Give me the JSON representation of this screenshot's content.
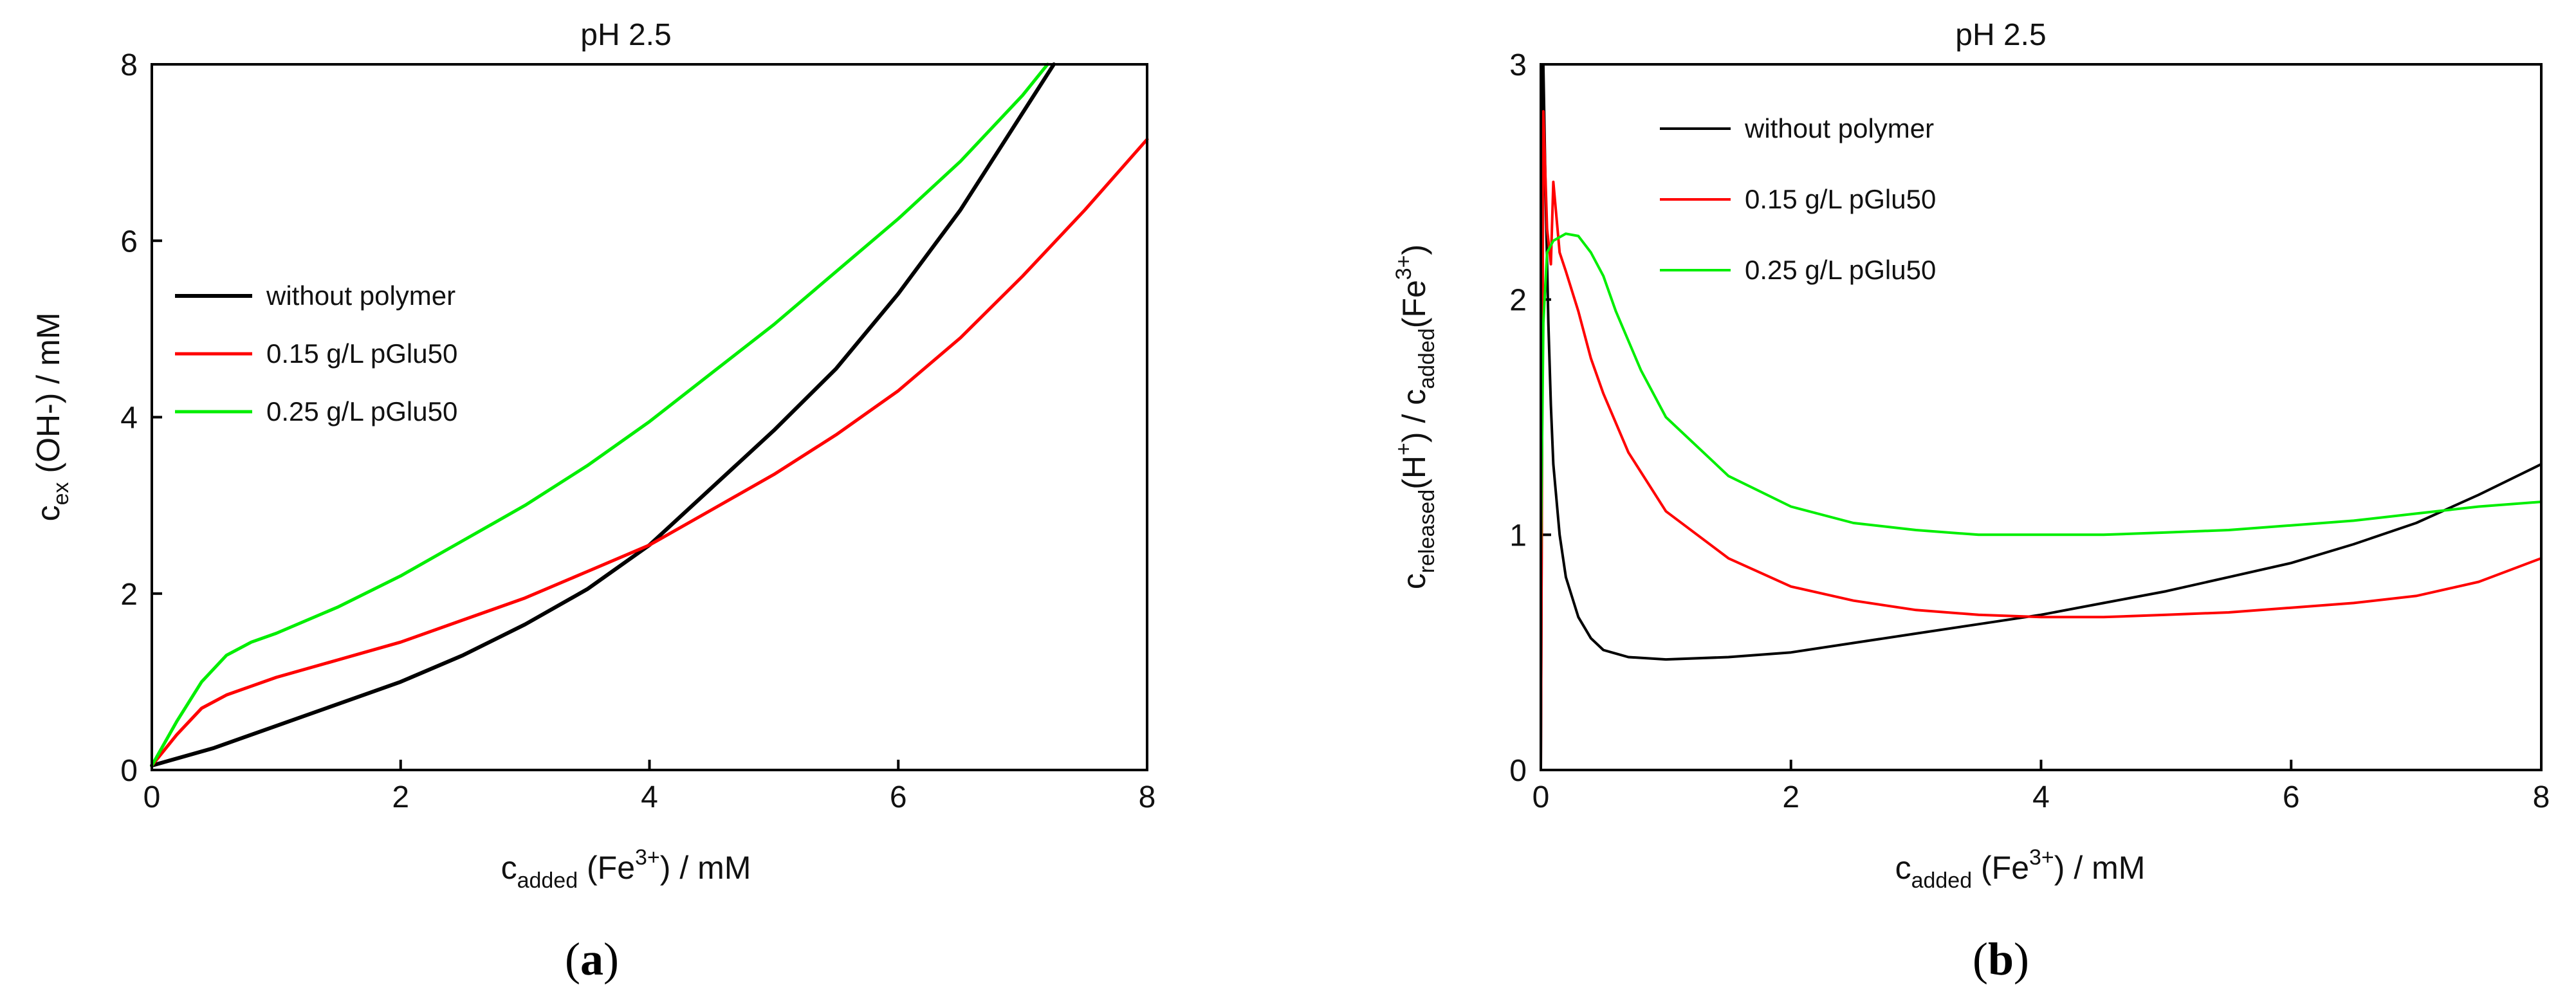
{
  "chart_data": [
    {
      "type": "line",
      "panel": "(a)",
      "panel_letter": "a",
      "title": "pH 2.5",
      "xlabel": {
        "main": "c",
        "sub": "added",
        "rest1": " (Fe",
        "sup": "3+",
        "rest2": ") / mM"
      },
      "ylabel": {
        "main": "c",
        "sub": "ex",
        "rest": " (OH-) / mM"
      },
      "xlim": [
        0,
        8
      ],
      "ylim": [
        0,
        8
      ],
      "xticks": [
        0,
        2,
        4,
        6,
        8
      ],
      "yticks": [
        0,
        2,
        4,
        6,
        8
      ],
      "legend_position": "middle-left",
      "series": [
        {
          "name": "without polymer",
          "color": "#000000",
          "width": 6,
          "x": [
            0,
            0.5,
            1,
            1.5,
            2,
            2.5,
            3,
            3.5,
            4,
            4.5,
            5,
            5.5,
            6,
            6.5,
            7,
            7.25
          ],
          "y": [
            0.05,
            0.25,
            0.5,
            0.75,
            1.0,
            1.3,
            1.65,
            2.05,
            2.55,
            3.2,
            3.85,
            4.55,
            5.4,
            6.35,
            7.45,
            8.0
          ]
        },
        {
          "name": "0.15 g/L pGlu50",
          "color": "#ff0000",
          "width": 5,
          "x": [
            0,
            0.2,
            0.4,
            0.6,
            0.8,
            1,
            1.5,
            2,
            2.5,
            3,
            3.5,
            4,
            4.5,
            5,
            5.5,
            6,
            6.5,
            7,
            7.5,
            8
          ],
          "y": [
            0.05,
            0.4,
            0.7,
            0.85,
            0.95,
            1.05,
            1.25,
            1.45,
            1.7,
            1.95,
            2.25,
            2.55,
            2.95,
            3.35,
            3.8,
            4.3,
            4.9,
            5.6,
            6.35,
            7.15
          ]
        },
        {
          "name": "0.25 g/L pGlu50",
          "color": "#00ee00",
          "width": 5,
          "x": [
            0,
            0.2,
            0.4,
            0.6,
            0.8,
            1,
            1.5,
            2,
            2.5,
            3,
            3.5,
            4,
            4.5,
            5,
            5.5,
            6,
            6.5,
            7,
            7.2
          ],
          "y": [
            0.05,
            0.55,
            1.0,
            1.3,
            1.45,
            1.55,
            1.85,
            2.2,
            2.6,
            3.0,
            3.45,
            3.95,
            4.5,
            5.05,
            5.65,
            6.25,
            6.9,
            7.65,
            8.0
          ]
        }
      ]
    },
    {
      "type": "line",
      "panel": "(b)",
      "panel_letter": "b",
      "title": "pH 2.5",
      "xlabel": {
        "main": "c",
        "sub": "added",
        "rest1": " (Fe",
        "sup": "3+",
        "rest2": ") / mM"
      },
      "ylabel": {
        "p1": "c",
        "sub1": "released",
        "p2": "(H",
        "sup1": "+",
        "p3": ") / c",
        "sub2": "added",
        "p4": "(Fe",
        "sup2": "3+",
        "p5": ")"
      },
      "xlim": [
        0,
        8
      ],
      "ylim": [
        0,
        3
      ],
      "xticks": [
        0,
        2,
        4,
        6,
        8
      ],
      "yticks": [
        0,
        1,
        2,
        3
      ],
      "legend_position": "top-left",
      "series": [
        {
          "name": "without polymer",
          "color": "#000000",
          "width": 4,
          "x": [
            0,
            0.02,
            0.04,
            0.06,
            0.08,
            0.1,
            0.15,
            0.2,
            0.3,
            0.4,
            0.5,
            0.7,
            1.0,
            1.5,
            2,
            2.5,
            3,
            3.5,
            4,
            4.5,
            5,
            5.5,
            6,
            6.5,
            7,
            7.5,
            8
          ],
          "y": [
            0.0,
            3.0,
            2.4,
            1.9,
            1.55,
            1.3,
            1.0,
            0.82,
            0.65,
            0.56,
            0.51,
            0.48,
            0.47,
            0.48,
            0.5,
            0.54,
            0.58,
            0.62,
            0.66,
            0.71,
            0.76,
            0.82,
            0.88,
            0.96,
            1.05,
            1.17,
            1.3
          ]
        },
        {
          "name": "0.15 g/L pGlu50",
          "color": "#ff0000",
          "width": 4,
          "x": [
            0,
            0.02,
            0.05,
            0.08,
            0.1,
            0.15,
            0.2,
            0.3,
            0.4,
            0.5,
            0.7,
            1.0,
            1.5,
            2,
            2.5,
            3,
            3.5,
            4,
            4.5,
            5,
            5.5,
            6,
            6.5,
            7,
            7.5,
            8
          ],
          "y": [
            0.0,
            2.8,
            2.3,
            2.15,
            2.5,
            2.2,
            2.12,
            1.95,
            1.75,
            1.6,
            1.35,
            1.1,
            0.9,
            0.78,
            0.72,
            0.68,
            0.66,
            0.65,
            0.65,
            0.66,
            0.67,
            0.69,
            0.71,
            0.74,
            0.8,
            0.9
          ]
        },
        {
          "name": "0.25 g/L pGlu50",
          "color": "#00ee00",
          "width": 4,
          "x": [
            0,
            0.02,
            0.05,
            0.1,
            0.2,
            0.3,
            0.4,
            0.5,
            0.6,
            0.8,
            1.0,
            1.5,
            2,
            2.5,
            3,
            3.5,
            4,
            4.5,
            5,
            5.5,
            6,
            6.5,
            7,
            7.5,
            8
          ],
          "y": [
            0.9,
            1.9,
            2.2,
            2.25,
            2.28,
            2.27,
            2.2,
            2.1,
            1.95,
            1.7,
            1.5,
            1.25,
            1.12,
            1.05,
            1.02,
            1.0,
            1.0,
            1.0,
            1.01,
            1.02,
            1.04,
            1.06,
            1.09,
            1.12,
            1.14
          ]
        }
      ]
    }
  ]
}
